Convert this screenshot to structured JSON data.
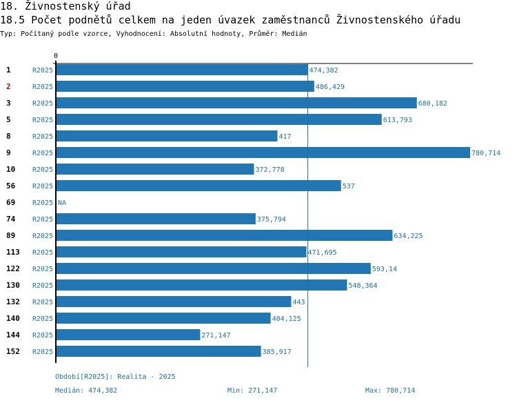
{
  "header": {
    "title": "18. Živnostenský úřad",
    "subtitle": "18.5 Počet podnětů celkem na jeden úvazek zaměstnanců Živnostenského úřadu",
    "meta": "Typ: Počítaný podle vzorce, Vyhodnocení: Absolutní hodnoty, Průměr: Medián"
  },
  "colors": {
    "bar": "#2176b4",
    "text": "#1f6fa8",
    "highlight": "#cc0000"
  },
  "chart_data": {
    "type": "bar",
    "orientation": "horizontal",
    "zero_label": "0",
    "xlim": [
      0,
      780.714
    ],
    "series_label": "R2025",
    "median_line": 474.382,
    "highlight_category": "2",
    "categories": [
      "1",
      "2",
      "3",
      "5",
      "8",
      "9",
      "10",
      "56",
      "69",
      "74",
      "89",
      "113",
      "122",
      "130",
      "132",
      "140",
      "144",
      "152"
    ],
    "values": [
      474.382,
      486.429,
      680.182,
      613.793,
      417,
      780.714,
      372.778,
      537,
      null,
      375.794,
      634.225,
      471.695,
      593.14,
      548.364,
      443,
      404.125,
      271.147,
      385.917
    ],
    "value_labels": [
      "474,382",
      "486,429",
      "680,182",
      "613,793",
      "417",
      "780,714",
      "372,778",
      "537",
      "NA",
      "375,794",
      "634,225",
      "471,695",
      "593,14",
      "548,364",
      "443",
      "404,125",
      "271,147",
      "385,917"
    ]
  },
  "footer": {
    "period": "Období[R2025]: Realita - 2025",
    "median": "Medián: 474,382",
    "min": "Min: 271,147",
    "max": "Max: 780,714"
  }
}
